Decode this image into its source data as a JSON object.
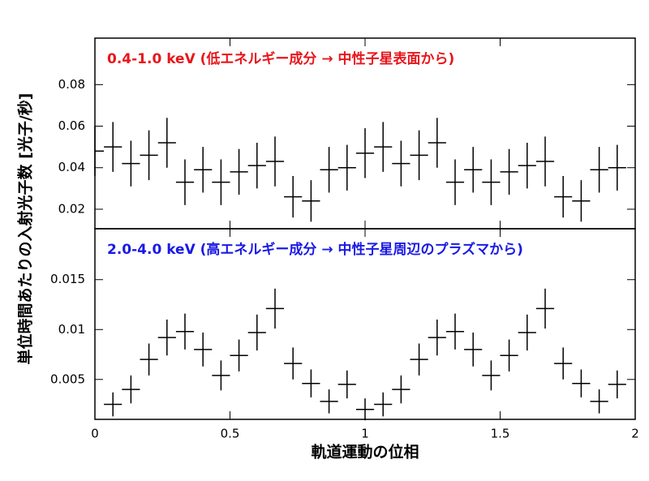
{
  "chart_data": [
    {
      "type": "errorbar",
      "title": "0.4-1.0 keV (低エネルギー成分 → 中性子星表面から)",
      "title_color": "#e8161b",
      "color": "#000000",
      "ylabel": "単位時間あたりの入射光子数 [光子/秒]",
      "x": [
        0,
        0.0667,
        0.1333,
        0.2,
        0.2667,
        0.3333,
        0.4,
        0.4667,
        0.5333,
        0.6,
        0.6667,
        0.7333,
        0.8,
        0.8667,
        0.9333,
        1,
        1.0667,
        1.1333,
        1.2,
        1.2667,
        1.3333,
        1.4,
        1.4667,
        1.5333,
        1.6,
        1.6667,
        1.7333,
        1.8,
        1.8667,
        1.9333
      ],
      "values": [
        0.048,
        0.05,
        0.042,
        0.046,
        0.052,
        0.033,
        0.039,
        0.033,
        0.038,
        0.041,
        0.043,
        0.026,
        0.024,
        0.039,
        0.04,
        0.047,
        0.05,
        0.042,
        0.046,
        0.052,
        0.033,
        0.039,
        0.033,
        0.038,
        0.041,
        0.043,
        0.026,
        0.024,
        0.039,
        0.04
      ],
      "yerr": [
        0.012,
        0.012,
        0.011,
        0.012,
        0.012,
        0.011,
        0.011,
        0.011,
        0.011,
        0.011,
        0.012,
        0.01,
        0.01,
        0.011,
        0.011,
        0.012,
        0.012,
        0.011,
        0.012,
        0.012,
        0.011,
        0.011,
        0.011,
        0.011,
        0.011,
        0.012,
        0.01,
        0.01,
        0.011,
        0.011
      ],
      "xerr": 0.0333,
      "xlim": [
        0,
        2
      ],
      "ylim": [
        0.0106,
        0.1024
      ],
      "yticks": [
        0.02,
        0.04,
        0.06,
        0.08
      ]
    },
    {
      "type": "errorbar",
      "title": "2.0-4.0 keV (高エネルギー成分 → 中性子星周辺のプラズマから)",
      "title_color": "#1a1ae6",
      "color": "#000000",
      "xlabel": "軌道運動の位相",
      "x": [
        0.0667,
        0.1333,
        0.2,
        0.2667,
        0.3333,
        0.4,
        0.4667,
        0.5333,
        0.6,
        0.6667,
        0.7333,
        0.8,
        0.8667,
        0.9333,
        1,
        1.0667,
        1.1333,
        1.2,
        1.2667,
        1.3333,
        1.4,
        1.4667,
        1.5333,
        1.6,
        1.6667,
        1.7333,
        1.8,
        1.8667,
        1.9333
      ],
      "values": [
        0.0025,
        0.004,
        0.007,
        0.0092,
        0.0098,
        0.008,
        0.0054,
        0.0074,
        0.0097,
        0.0121,
        0.0066,
        0.0046,
        0.0028,
        0.0045,
        0.002,
        0.0025,
        0.004,
        0.007,
        0.0092,
        0.0098,
        0.008,
        0.0054,
        0.0074,
        0.0097,
        0.0121,
        0.0066,
        0.0046,
        0.0028,
        0.0045
      ],
      "yerr": [
        0.0012,
        0.0014,
        0.0016,
        0.0018,
        0.0018,
        0.0017,
        0.0015,
        0.0016,
        0.0018,
        0.002,
        0.0016,
        0.0014,
        0.0012,
        0.0014,
        0.0011,
        0.0012,
        0.0014,
        0.0016,
        0.0018,
        0.0018,
        0.0017,
        0.0015,
        0.0016,
        0.0018,
        0.002,
        0.0016,
        0.0014,
        0.0012,
        0.0014
      ],
      "xerr": 0.0333,
      "xlim": [
        0,
        2
      ],
      "xticks": [
        0,
        0.5,
        1,
        1.5,
        2
      ],
      "ylim": [
        0.001,
        0.0201
      ],
      "yticks": [
        0.005,
        0.01,
        0.015
      ]
    }
  ]
}
